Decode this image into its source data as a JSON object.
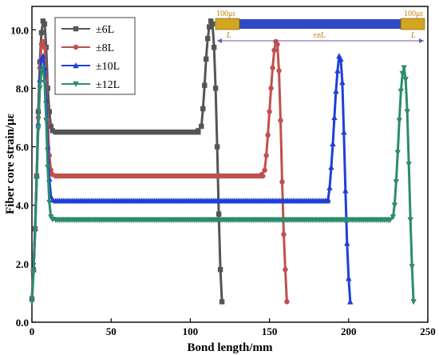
{
  "chart_data": {
    "type": "line",
    "xlabel": "Bond length/mm",
    "ylabel": "Fiber core strain/με",
    "xlim": [
      0,
      250
    ],
    "ylim": [
      0,
      10.8
    ],
    "x_ticks": [
      0,
      50,
      100,
      150,
      200,
      250
    ],
    "y_ticks": [
      0.0,
      2.0,
      4.0,
      6.0,
      8.0,
      10.0
    ],
    "x_tick_labels": [
      "0",
      "50",
      "100",
      "150",
      "200",
      "250"
    ],
    "y_tick_labels": [
      "0.0",
      "2.0",
      "4.0",
      "6.0",
      "8.0",
      "10.0"
    ],
    "grid": false,
    "legend_position": "top-left",
    "series": [
      {
        "name": "±6L",
        "color": "#555555",
        "marker": "square",
        "plateau": 6.5,
        "peak": 10.3,
        "right_end": 120,
        "points": [
          [
            0,
            0.8
          ],
          [
            1,
            1.8
          ],
          [
            2,
            3.2
          ],
          [
            3,
            5.0
          ],
          [
            4,
            7.2
          ],
          [
            5,
            8.9
          ],
          [
            6,
            9.9
          ],
          [
            7,
            10.3
          ],
          [
            8,
            10.2
          ],
          [
            9,
            9.4
          ],
          [
            10,
            8.0
          ],
          [
            11,
            7.2
          ],
          [
            12,
            6.7
          ],
          [
            13,
            6.55
          ],
          [
            15,
            6.5
          ],
          [
            20,
            6.5
          ],
          [
            30,
            6.5
          ],
          [
            40,
            6.5
          ],
          [
            50,
            6.5
          ],
          [
            60,
            6.5
          ],
          [
            70,
            6.5
          ],
          [
            80,
            6.5
          ],
          [
            90,
            6.5
          ],
          [
            100,
            6.5
          ],
          [
            105,
            6.55
          ],
          [
            107,
            6.7
          ],
          [
            108,
            7.3
          ],
          [
            109,
            8.1
          ],
          [
            110,
            9.0
          ],
          [
            111,
            9.7
          ],
          [
            112,
            10.1
          ],
          [
            113,
            10.3
          ],
          [
            114,
            10.2
          ],
          [
            115,
            9.4
          ],
          [
            116,
            8.0
          ],
          [
            117,
            6.0
          ],
          [
            118,
            3.7
          ],
          [
            119,
            1.8
          ],
          [
            120,
            0.7
          ]
        ]
      },
      {
        "name": "±8L",
        "color": "#c0504d",
        "marker": "circle",
        "plateau": 5.0,
        "peak": 9.6,
        "right_end": 161,
        "points": [
          [
            0,
            0.8
          ],
          [
            1,
            1.8
          ],
          [
            2,
            3.2
          ],
          [
            3,
            5.0
          ],
          [
            4,
            7.0
          ],
          [
            5,
            8.7
          ],
          [
            6,
            9.5
          ],
          [
            7,
            9.6
          ],
          [
            8,
            9.4
          ],
          [
            9,
            8.3
          ],
          [
            10,
            6.8
          ],
          [
            11,
            5.7
          ],
          [
            12,
            5.2
          ],
          [
            13,
            5.05
          ],
          [
            15,
            5.0
          ],
          [
            25,
            5.0
          ],
          [
            40,
            5.0
          ],
          [
            60,
            5.0
          ],
          [
            80,
            5.0
          ],
          [
            100,
            5.0
          ],
          [
            120,
            5.0
          ],
          [
            140,
            5.0
          ],
          [
            145,
            5.05
          ],
          [
            147,
            5.2
          ],
          [
            148,
            5.7
          ],
          [
            149,
            6.4
          ],
          [
            150,
            7.2
          ],
          [
            151,
            8.0
          ],
          [
            152,
            8.7
          ],
          [
            153,
            9.3
          ],
          [
            154,
            9.6
          ],
          [
            155,
            9.5
          ],
          [
            156,
            8.6
          ],
          [
            157,
            6.9
          ],
          [
            158,
            4.8
          ],
          [
            159,
            3.0
          ],
          [
            160,
            1.8
          ],
          [
            161,
            0.7
          ]
        ]
      },
      {
        "name": "±10L",
        "color": "#1f3fd6",
        "marker": "triangle-up",
        "plateau": 4.15,
        "peak": 9.1,
        "right_end": 201,
        "points": [
          [
            0,
            0.8
          ],
          [
            1,
            1.8
          ],
          [
            2,
            3.2
          ],
          [
            3,
            5.0
          ],
          [
            4,
            6.8
          ],
          [
            5,
            8.3
          ],
          [
            6,
            9.0
          ],
          [
            7,
            9.1
          ],
          [
            8,
            8.7
          ],
          [
            9,
            7.6
          ],
          [
            10,
            6.0
          ],
          [
            11,
            4.9
          ],
          [
            12,
            4.3
          ],
          [
            13,
            4.18
          ],
          [
            15,
            4.15
          ],
          [
            30,
            4.15
          ],
          [
            50,
            4.15
          ],
          [
            80,
            4.15
          ],
          [
            110,
            4.15
          ],
          [
            140,
            4.15
          ],
          [
            170,
            4.15
          ],
          [
            185,
            4.15
          ],
          [
            187,
            4.2
          ],
          [
            188,
            4.6
          ],
          [
            189,
            5.3
          ],
          [
            190,
            6.1
          ],
          [
            191,
            7.0
          ],
          [
            192,
            7.9
          ],
          [
            193,
            8.6
          ],
          [
            194,
            9.1
          ],
          [
            195,
            9.0
          ],
          [
            196,
            8.2
          ],
          [
            197,
            6.5
          ],
          [
            198,
            4.5
          ],
          [
            199,
            2.7
          ],
          [
            200,
            1.5
          ],
          [
            201,
            0.7
          ]
        ]
      },
      {
        "name": "±12L",
        "color": "#2e8b6e",
        "marker": "triangle-down",
        "plateau": 3.5,
        "peak": 8.7,
        "right_end": 241,
        "points": [
          [
            0,
            0.7
          ],
          [
            1,
            1.7
          ],
          [
            2,
            3.1
          ],
          [
            3,
            4.9
          ],
          [
            4,
            6.6
          ],
          [
            5,
            8.0
          ],
          [
            6,
            8.6
          ],
          [
            7,
            8.7
          ],
          [
            8,
            8.2
          ],
          [
            9,
            6.9
          ],
          [
            10,
            5.3
          ],
          [
            11,
            4.1
          ],
          [
            12,
            3.6
          ],
          [
            13,
            3.52
          ],
          [
            15,
            3.5
          ],
          [
            40,
            3.5
          ],
          [
            70,
            3.5
          ],
          [
            100,
            3.5
          ],
          [
            130,
            3.5
          ],
          [
            160,
            3.5
          ],
          [
            190,
            3.5
          ],
          [
            220,
            3.5
          ],
          [
            226,
            3.5
          ],
          [
            228,
            3.6
          ],
          [
            229,
            4.0
          ],
          [
            230,
            4.8
          ],
          [
            231,
            5.8
          ],
          [
            232,
            6.9
          ],
          [
            233,
            7.9
          ],
          [
            234,
            8.5
          ],
          [
            235,
            8.7
          ],
          [
            236,
            8.3
          ],
          [
            237,
            7.2
          ],
          [
            238,
            5.4
          ],
          [
            239,
            3.5
          ],
          [
            240,
            1.9
          ],
          [
            241,
            0.7
          ]
        ]
      }
    ],
    "inset": {
      "left_label": "100με",
      "right_label": "100με",
      "left_seg_label": "L",
      "right_seg_label": "L",
      "middle_label": "±nL",
      "bar_color": "#2f49c6",
      "end_color": "#d4a520"
    }
  }
}
